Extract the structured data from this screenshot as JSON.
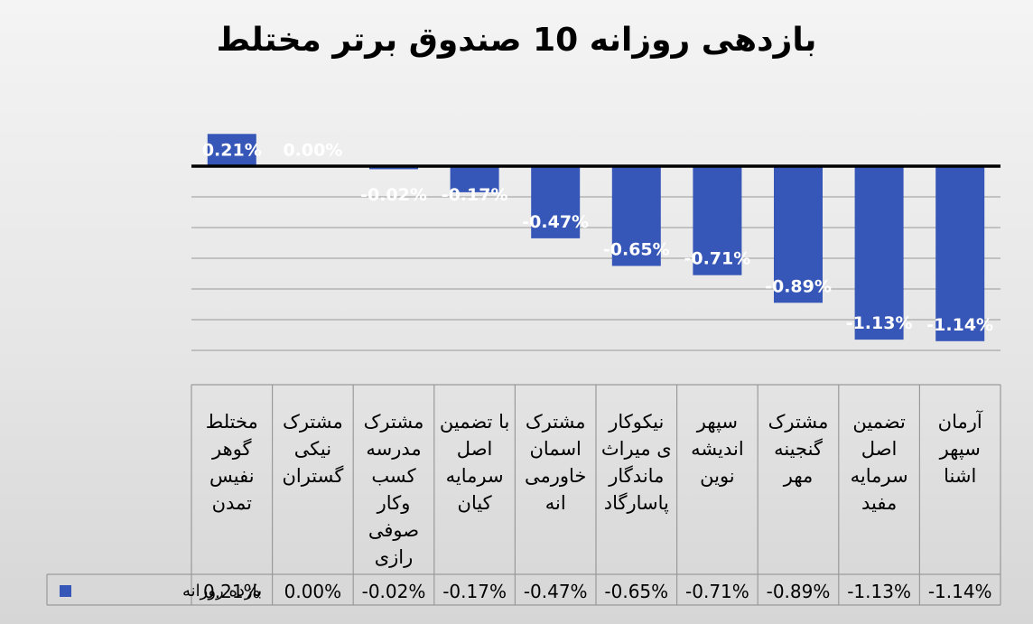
{
  "chart_data": {
    "type": "bar",
    "title": "بازدهی روزانه 10 صندوق برتر مختلط",
    "categories": [
      [
        "مختلط",
        "گوهر",
        "نفیس",
        "تمدن"
      ],
      [
        "مشترک",
        "نیکی",
        "گستران"
      ],
      [
        "مشترک",
        "مدرسه",
        "کسب",
        "وکار",
        "صوفی",
        "رازی"
      ],
      [
        "با تضمین",
        "اصل",
        "سرمایه",
        "کیان"
      ],
      [
        "مشترک",
        "اسمان",
        "خاورمی",
        "انه"
      ],
      [
        "نیکوکار",
        "ی میراث",
        "ماندگار",
        "پاسارگاد"
      ],
      [
        "سپهر",
        "اندیشه",
        "نوین"
      ],
      [
        "مشترک",
        "گنجینه",
        "مهر"
      ],
      [
        "تضمین",
        "اصل",
        "سرمایه",
        "مفید"
      ],
      [
        "آرمان",
        "سپهر",
        "اشنا"
      ]
    ],
    "series": [
      {
        "name": "بازده روزانه",
        "values": [
          0.21,
          0.0,
          -0.02,
          -0.17,
          -0.47,
          -0.65,
          -0.71,
          -0.89,
          -1.13,
          -1.14
        ],
        "labels": [
          "0.21%",
          "0.00%",
          "-0.02%",
          "-0.17%",
          "-0.47%",
          "-0.65%",
          "-0.71%",
          "-0.89%",
          "-1.13%",
          "-1.14%"
        ],
        "color": "#3656b8"
      }
    ],
    "ylim": [
      -1.25,
      0.4
    ],
    "grid": true,
    "legend": "data-table-left",
    "data_table": true
  }
}
